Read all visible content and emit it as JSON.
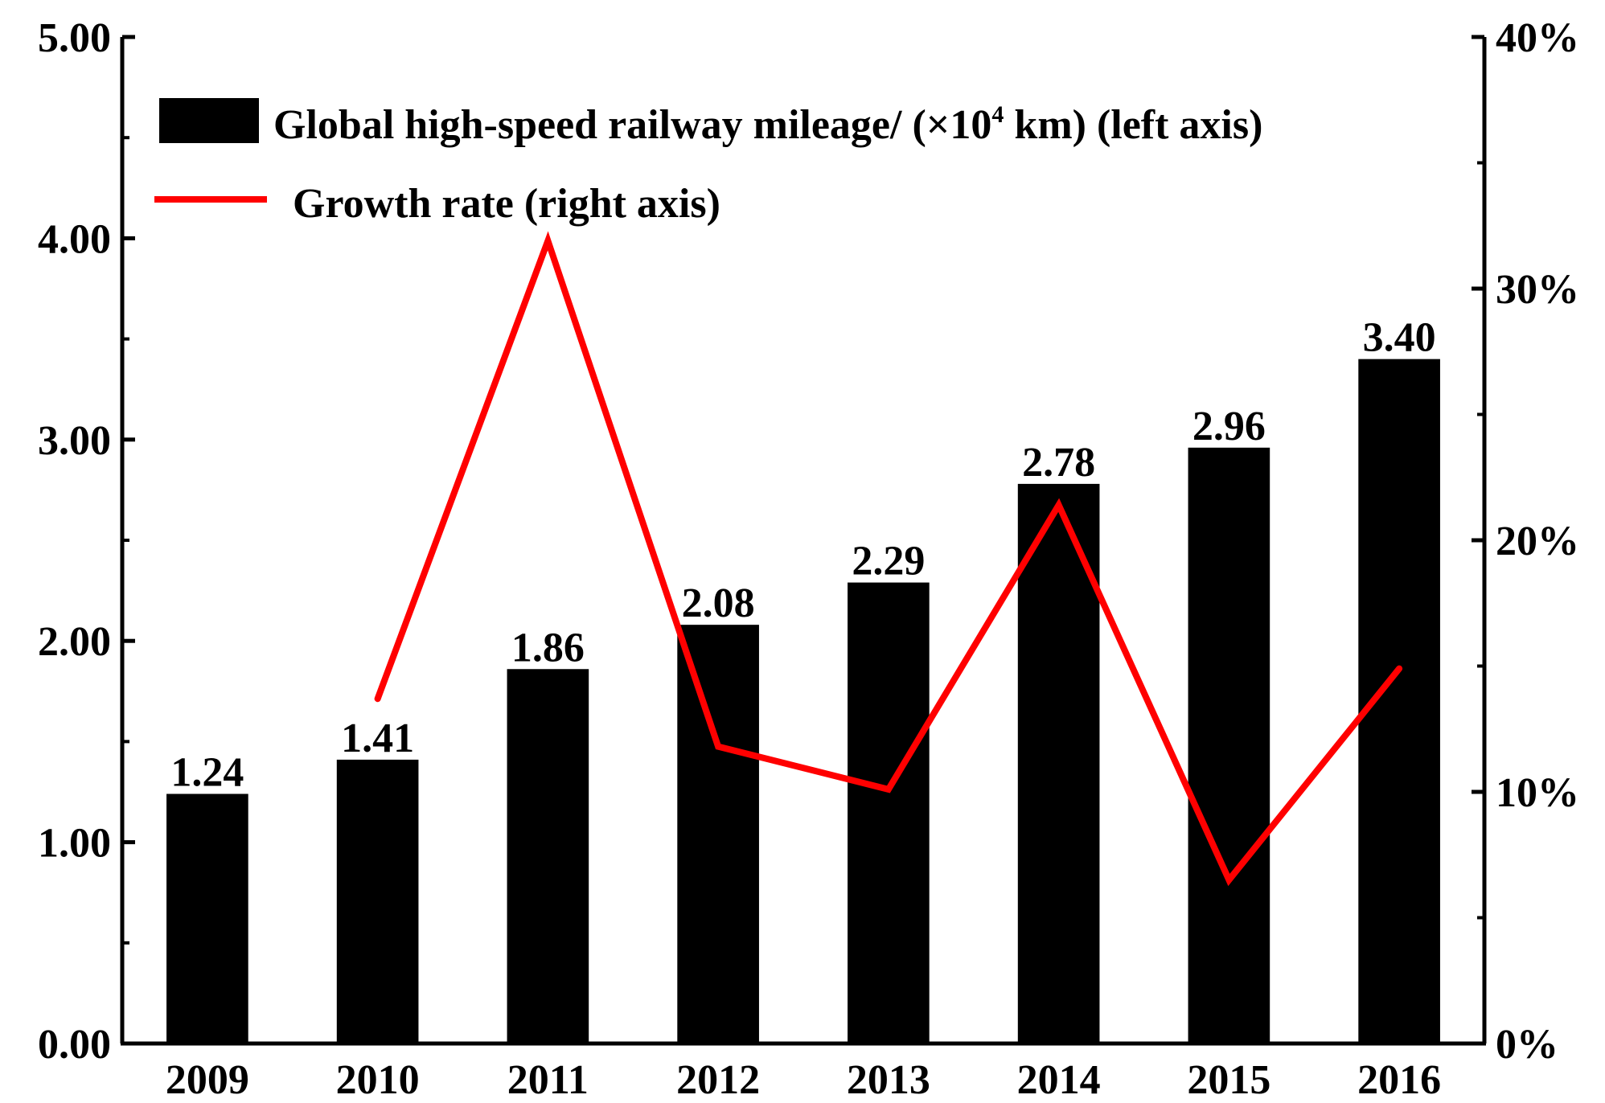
{
  "chart_data": {
    "type": "bar",
    "categories": [
      "2009",
      "2010",
      "2011",
      "2012",
      "2013",
      "2014",
      "2015",
      "2016"
    ],
    "series": [
      {
        "name": "Global high-speed railway mileage/ (×10⁴ km) (left axis)",
        "kind": "bar",
        "axis": "left",
        "values": [
          1.24,
          1.41,
          1.86,
          2.08,
          2.29,
          2.78,
          2.96,
          3.4
        ],
        "data_labels": [
          "1.24",
          "1.41",
          "1.86",
          "2.08",
          "2.29",
          "2.78",
          "2.96",
          "3.40"
        ],
        "color": "#000000"
      },
      {
        "name": "Growth rate (right axis)",
        "kind": "line",
        "axis": "right",
        "values": [
          null,
          13.7,
          31.9,
          11.8,
          10.1,
          21.4,
          6.5,
          14.9
        ],
        "color": "#ff0000"
      }
    ],
    "left_axis": {
      "ylim": [
        0,
        5
      ],
      "ticks": [
        "0.00",
        "1.00",
        "2.00",
        "3.00",
        "4.00",
        "5.00"
      ],
      "tick_values": [
        0,
        1,
        2,
        3,
        4,
        5
      ],
      "minor_step": 0.5
    },
    "right_axis": {
      "ylim": [
        0,
        40
      ],
      "ticks": [
        "0%",
        "10%",
        "20%",
        "30%",
        "40%"
      ],
      "tick_values": [
        0,
        10,
        20,
        30,
        40
      ],
      "minor_step": 5
    },
    "legend": {
      "placement": "top-left",
      "bar_label_prefix": "Global high-speed railway mileage/ (×10",
      "bar_label_sup": "4",
      "bar_label_suffix": " km) (left axis)",
      "line_label": "Growth rate (right axis)"
    },
    "title": "",
    "xlabel": "",
    "ylabel": "",
    "grid": false
  }
}
